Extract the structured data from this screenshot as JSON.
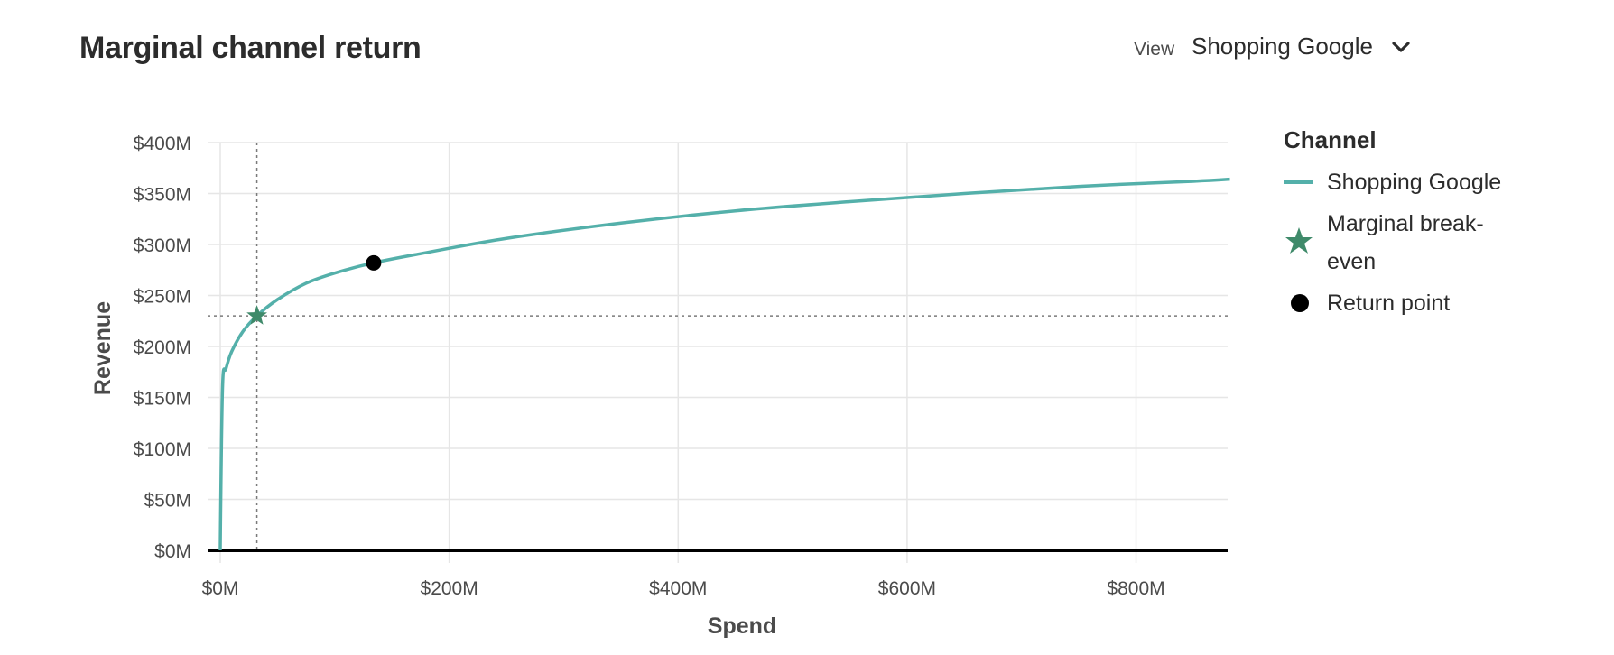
{
  "header": {
    "title": "Marginal channel return",
    "view_label": "View",
    "view_value": "Shopping Google"
  },
  "colors": {
    "series": "#54b0aa",
    "breakeven": "#3f8a6a",
    "return_point": "#000000",
    "grid": "#e6e6e6",
    "axis": "#000000",
    "guide": "#7a7a7a"
  },
  "legend": {
    "title": "Channel",
    "items": [
      {
        "label": "Shopping Google",
        "marker": "line"
      },
      {
        "label": "Marginal break-even",
        "marker": "star"
      },
      {
        "label": "Return point",
        "marker": "circle"
      }
    ]
  },
  "chart_data": {
    "type": "line",
    "xlabel": "Spend",
    "ylabel": "Revenue",
    "xlim": [
      0,
      880
    ],
    "ylim": [
      0,
      400
    ],
    "x_ticks": [
      0,
      200,
      400,
      600,
      800
    ],
    "x_tick_labels": [
      "$0M",
      "$200M",
      "$400M",
      "$600M",
      "$800M"
    ],
    "y_ticks": [
      0,
      50,
      100,
      150,
      200,
      250,
      300,
      350,
      400
    ],
    "y_tick_labels": [
      "$0M",
      "$50M",
      "$100M",
      "$150M",
      "$200M",
      "$250M",
      "$300M",
      "$350M",
      "$400M"
    ],
    "grid": true,
    "legend_position": "right",
    "series": [
      {
        "name": "Shopping Google",
        "x": [
          0,
          2,
          5,
          10,
          20,
          32,
          50,
          75,
          100,
          134,
          175,
          250,
          350,
          450,
          550,
          650,
          750,
          850,
          882
        ],
        "y": [
          0,
          160,
          178,
          195,
          215,
          230,
          246,
          262,
          272,
          282,
          291,
          306,
          321,
          333,
          342,
          350,
          357,
          362,
          364
        ]
      }
    ],
    "annotations": [
      {
        "name": "Marginal break-even",
        "type": "star",
        "x": 32,
        "y": 230
      },
      {
        "name": "Return point",
        "type": "circle",
        "x": 134,
        "y": 282
      }
    ]
  }
}
